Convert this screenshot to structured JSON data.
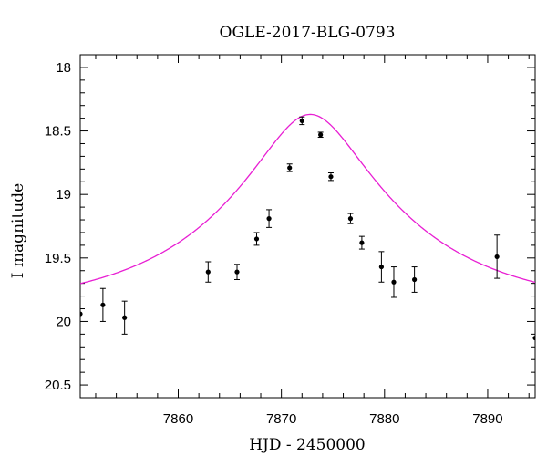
{
  "chart_data": {
    "type": "scatter",
    "title": "OGLE-2017-BLG-0793",
    "xlabel": "HJD - 2450000",
    "ylabel": "I magnitude",
    "xlim": [
      7850.5,
      7894.6
    ],
    "ylim": [
      20.6,
      17.9
    ],
    "y_inverted": true,
    "xticks": [
      7860,
      7870,
      7880,
      7890
    ],
    "yticks": [
      18,
      18.5,
      19,
      19.5,
      20,
      20.5
    ],
    "grid": false,
    "colors": {
      "model": "#e81fd3",
      "points": "#000000",
      "axes": "#000000"
    },
    "series": [
      {
        "kind": "points_with_errorbars",
        "points": [
          {
            "x": 7850.5,
            "y": 19.94,
            "err": 0.0
          },
          {
            "x": 7852.7,
            "y": 19.87,
            "err": 0.13
          },
          {
            "x": 7854.8,
            "y": 19.97,
            "err": 0.13
          },
          {
            "x": 7862.9,
            "y": 19.61,
            "err": 0.08
          },
          {
            "x": 7865.7,
            "y": 19.61,
            "err": 0.06
          },
          {
            "x": 7867.6,
            "y": 19.35,
            "err": 0.05
          },
          {
            "x": 7868.8,
            "y": 19.19,
            "err": 0.07
          },
          {
            "x": 7870.8,
            "y": 18.79,
            "err": 0.03
          },
          {
            "x": 7872.0,
            "y": 18.42,
            "err": 0.03
          },
          {
            "x": 7873.8,
            "y": 18.53,
            "err": 0.02
          },
          {
            "x": 7874.8,
            "y": 18.86,
            "err": 0.03
          },
          {
            "x": 7876.7,
            "y": 19.19,
            "err": 0.04
          },
          {
            "x": 7877.8,
            "y": 19.38,
            "err": 0.05
          },
          {
            "x": 7879.7,
            "y": 19.57,
            "err": 0.12
          },
          {
            "x": 7880.9,
            "y": 19.69,
            "err": 0.12
          },
          {
            "x": 7882.9,
            "y": 19.67,
            "err": 0.1
          },
          {
            "x": 7890.9,
            "y": 19.49,
            "err": 0.17
          },
          {
            "x": 7894.6,
            "y": 20.13,
            "err": 0.0
          }
        ]
      },
      {
        "kind": "model_curve",
        "peak": {
          "x": 7872.8,
          "y": 18.37
        },
        "baseline": 19.91,
        "peak_amplification": 3.7,
        "half_width_x": 3.0
      }
    ]
  }
}
